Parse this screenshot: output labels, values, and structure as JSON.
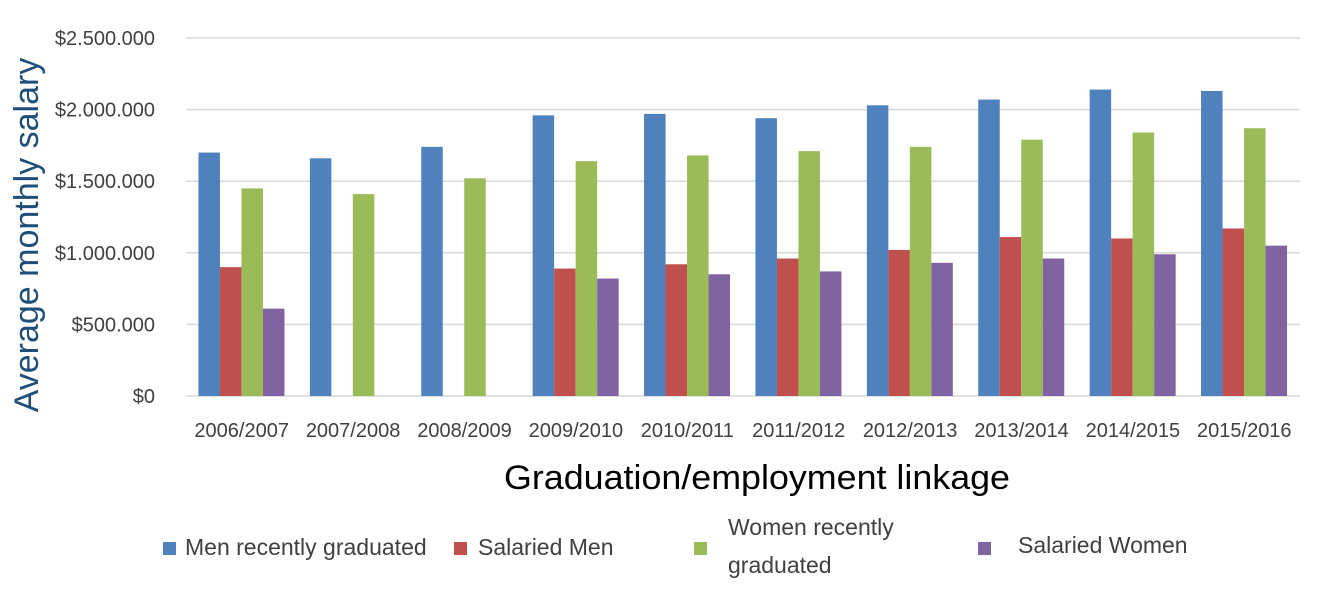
{
  "chart_data": {
    "type": "bar",
    "categories": [
      "2006/2007",
      "2007/2008",
      "2008/2009",
      "2009/2010",
      "2010/2011",
      "2011/2012",
      "2012/2013",
      "2013/2014",
      "2014/2015",
      "2015/2016"
    ],
    "series": [
      {
        "name": "Men recently graduated",
        "color": "#4f81bd",
        "values": [
          1700000,
          1660000,
          1740000,
          1960000,
          1970000,
          1940000,
          2030000,
          2070000,
          2140000,
          2130000
        ]
      },
      {
        "name": "Salaried Men",
        "color": "#c0504d",
        "values": [
          900000,
          null,
          null,
          890000,
          920000,
          960000,
          1020000,
          1110000,
          1100000,
          1170000
        ]
      },
      {
        "name": "Women recently graduated",
        "legend_lines": [
          "Women recently",
          "graduated"
        ],
        "color": "#9bbb59",
        "values": [
          1450000,
          1410000,
          1520000,
          1640000,
          1680000,
          1710000,
          1740000,
          1790000,
          1840000,
          1870000
        ]
      },
      {
        "name": "Salaried Women",
        "color": "#8064a2",
        "values": [
          610000,
          null,
          null,
          820000,
          850000,
          870000,
          930000,
          960000,
          990000,
          1050000
        ]
      }
    ],
    "ylim": [
      0,
      2500000
    ],
    "yticks": [
      {
        "value": 0,
        "label": "$0"
      },
      {
        "value": 500000,
        "label": "$500.000"
      },
      {
        "value": 1000000,
        "label": "$1.000.000"
      },
      {
        "value": 1500000,
        "label": "$1.500.000"
      },
      {
        "value": 2000000,
        "label": "$2.000.000"
      },
      {
        "value": 2500000,
        "label": "$2.500.000"
      }
    ],
    "xlabel": "Graduation/employment linkage",
    "ylabel": "Average monthly salary",
    "grid": true,
    "legend_position": "bottom"
  }
}
